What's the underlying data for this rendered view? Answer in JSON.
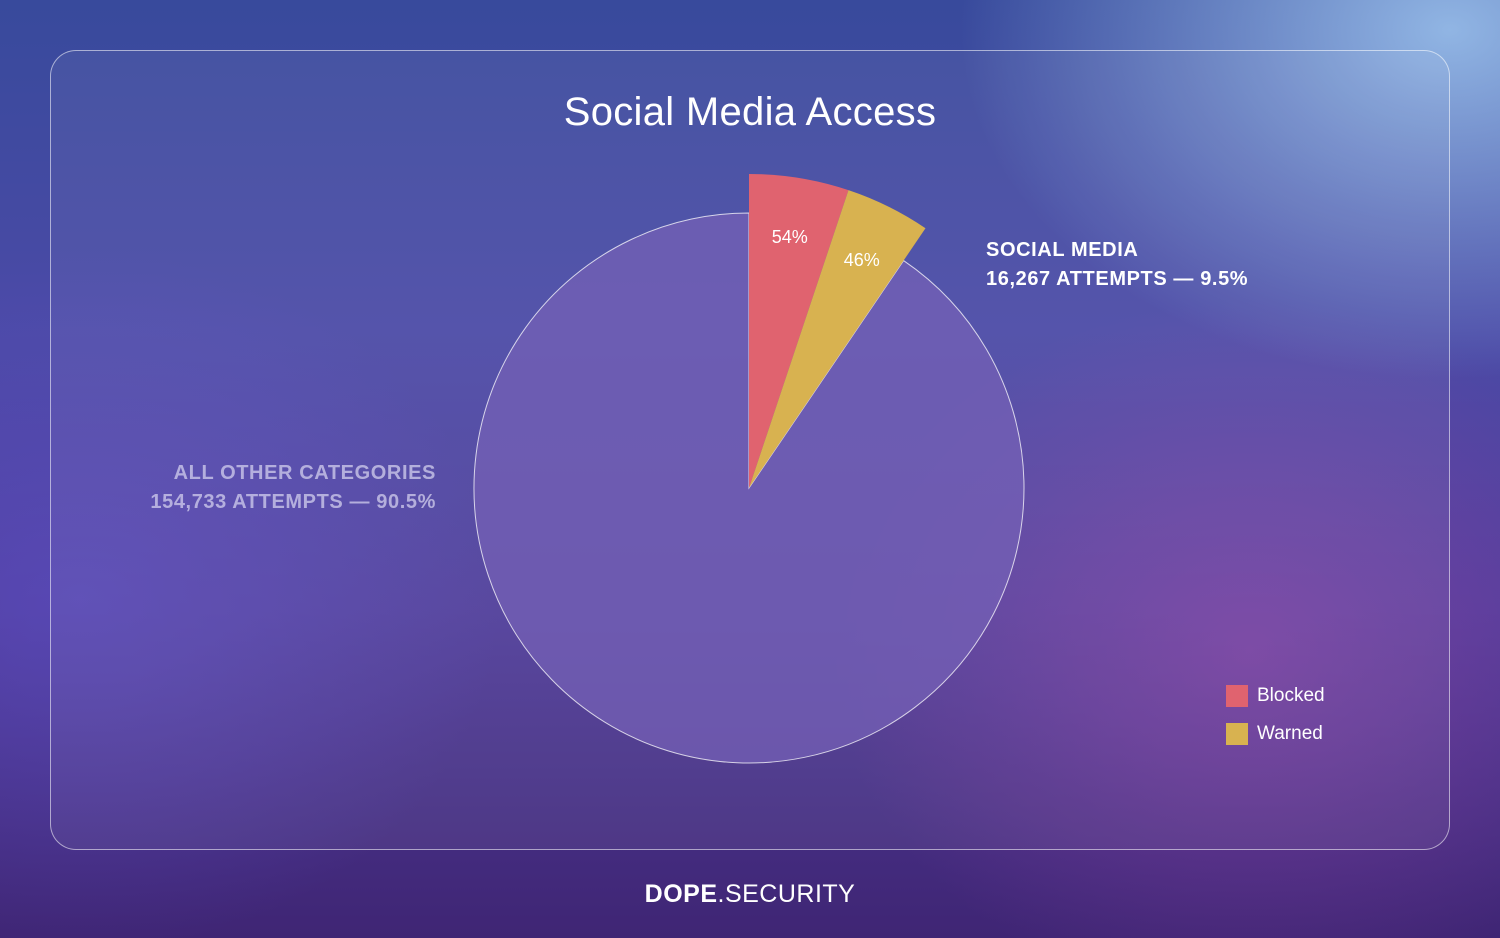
{
  "chart_data": {
    "type": "pie",
    "title": "Social Media Access",
    "slices": [
      {
        "name": "All Other Categories",
        "attempts": "154,733",
        "percent": 90.5,
        "color": "#7460b6"
      },
      {
        "name": "Social Media",
        "attempts": "16,267",
        "percent": 9.5,
        "exploded": true,
        "breakdown": [
          {
            "name": "Blocked",
            "percent": 54,
            "label": "54%",
            "color": "#e0636f"
          },
          {
            "name": "Warned",
            "percent": 46,
            "label": "46%",
            "color": "#d8b250"
          }
        ]
      }
    ],
    "annotations": {
      "social": {
        "line1": "SOCIAL MEDIA",
        "line2": "16,267 ATTEMPTS — 9.5%"
      },
      "other": {
        "line1": "ALL OTHER CATEGORIES",
        "line2": "154,733 ATTEMPTS — 90.5%"
      }
    },
    "legend": {
      "position": "bottom-right",
      "items": [
        {
          "label": "Blocked",
          "color": "#e0636f"
        },
        {
          "label": "Warned",
          "color": "#d8b250"
        }
      ]
    }
  },
  "brand": {
    "bold": "DOPE",
    "thin": ".SECURITY"
  }
}
